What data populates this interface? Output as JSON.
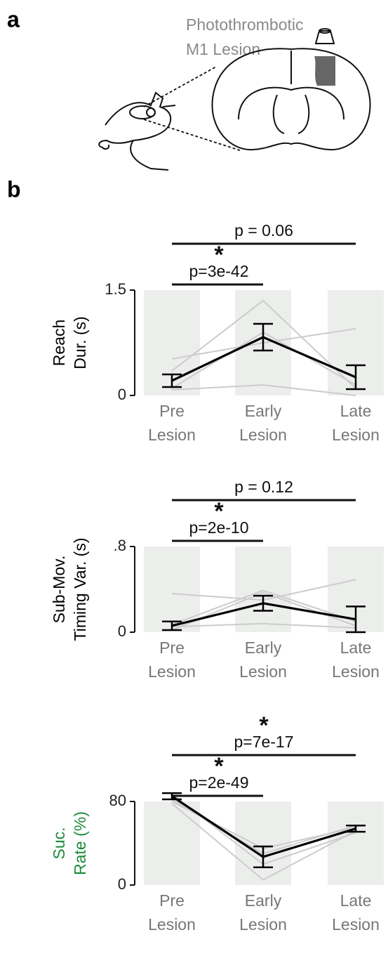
{
  "panel_a": {
    "label": "a",
    "caption": [
      "Photothrombotic",
      "M1 Lesion"
    ]
  },
  "panel_b": {
    "label": "b"
  },
  "chart_data": [
    {
      "type": "line",
      "ylabel": [
        "Reach",
        "Dur. (s)"
      ],
      "ylabel_color": "#000000",
      "categories": [
        [
          "Pre",
          "Lesion"
        ],
        [
          "Early",
          "Lesion"
        ],
        [
          "Late",
          "Lesion"
        ]
      ],
      "ylim": [
        0,
        1.5
      ],
      "yticks": [
        0,
        1.5
      ],
      "band_color": "#eceeec",
      "series": [
        {
          "color": "#cccccc",
          "values": [
            0.52,
            0.75,
            0.95
          ]
        },
        {
          "color": "#cccccc",
          "values": [
            0.35,
            1.35,
            0.1
          ]
        },
        {
          "color": "#cccccc",
          "values": [
            0.08,
            0.15,
            0.0
          ]
        },
        {
          "color": "#cccccc",
          "values": [
            0.1,
            0.9,
            0.15
          ]
        },
        {
          "color": "#000000",
          "values": [
            0.21,
            0.83,
            0.26
          ],
          "errors": [
            0.09,
            0.19,
            0.17
          ]
        }
      ],
      "comparisons": [
        {
          "label": "p = 0.06"
        },
        {
          "label": "p=3e-42",
          "star": "*"
        }
      ]
    },
    {
      "type": "line",
      "ylabel": [
        "Sub-Mov.",
        "Timing Var. (s)"
      ],
      "ylabel_color": "#000000",
      "categories": [
        [
          "Pre",
          "Lesion"
        ],
        [
          "Early",
          "Lesion"
        ],
        [
          "Late",
          "Lesion"
        ]
      ],
      "ylim": [
        0,
        0.8
      ],
      "yticks": [
        0,
        {
          "value": 0.8,
          "label": ".8"
        }
      ],
      "band_color": "#eceeec",
      "series": [
        {
          "color": "#cccccc",
          "values": [
            0.36,
            0.3,
            0.49
          ]
        },
        {
          "color": "#cccccc",
          "values": [
            0.02,
            0.37,
            0.06
          ]
        },
        {
          "color": "#cccccc",
          "values": [
            0.05,
            0.08,
            0.04
          ]
        },
        {
          "color": "#cccccc",
          "values": [
            0.07,
            0.39,
            0.1
          ]
        },
        {
          "color": "#000000",
          "values": [
            0.06,
            0.27,
            0.12
          ],
          "errors": [
            0.04,
            0.07,
            0.12
          ]
        }
      ],
      "comparisons": [
        {
          "label": "p = 0.12"
        },
        {
          "label": "p=2e-10",
          "star": "*"
        }
      ]
    },
    {
      "type": "line",
      "ylabel": [
        "Suc.",
        "Rate (%)"
      ],
      "ylabel_color": "#1a8a3a",
      "categories": [
        [
          "Pre",
          "Lesion"
        ],
        [
          "Early",
          "Lesion"
        ],
        [
          "Late",
          "Lesion"
        ]
      ],
      "ylim": [
        0,
        80
      ],
      "yticks": [
        0,
        80
      ],
      "band_color": "#eceeec",
      "series": [
        {
          "color": "#cccccc",
          "values": [
            80,
            35,
            55
          ]
        },
        {
          "color": "#cccccc",
          "values": [
            82,
            30,
            57
          ]
        },
        {
          "color": "#cccccc",
          "values": [
            78,
            5,
            52
          ]
        },
        {
          "color": "#cccccc",
          "values": [
            87,
            20,
            50
          ]
        },
        {
          "color": "#000000",
          "values": [
            85,
            27,
            54
          ],
          "errors": [
            3,
            10,
            3
          ]
        }
      ],
      "comparisons": [
        {
          "label": "p=7e-17",
          "star": "*"
        },
        {
          "label": "p=2e-49",
          "star": "*"
        }
      ]
    }
  ]
}
